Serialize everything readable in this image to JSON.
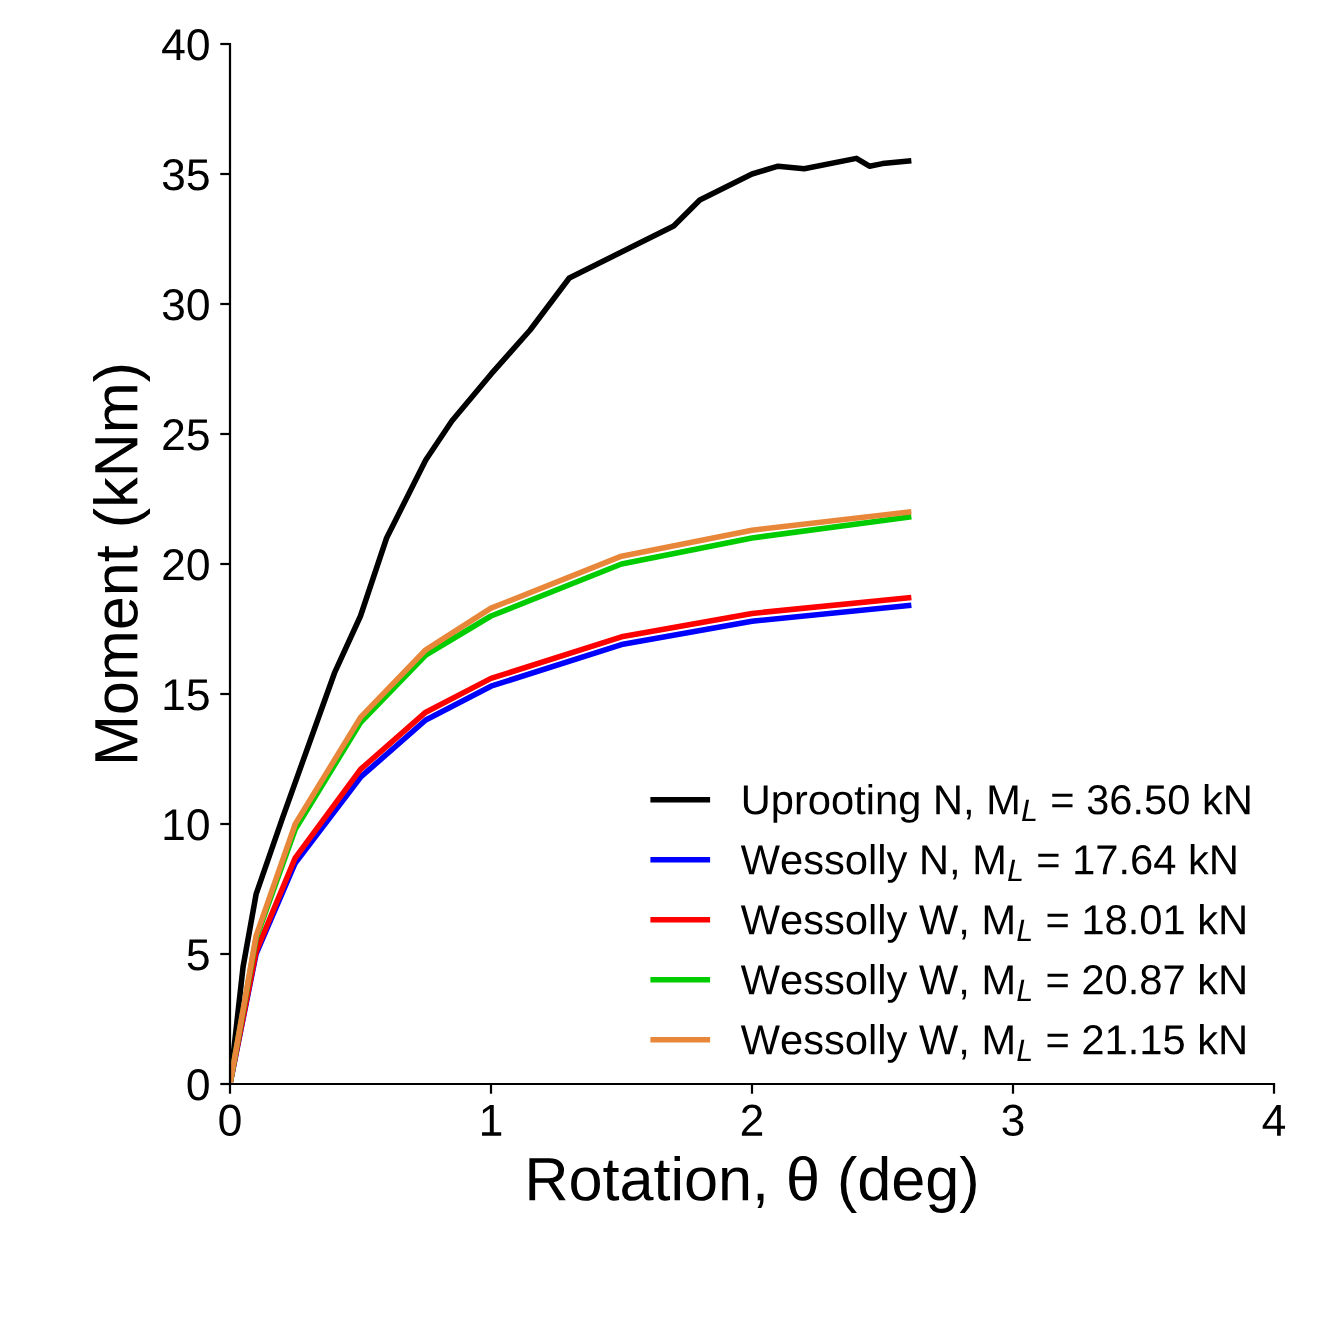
{
  "chart_data": {
    "type": "line",
    "xlabel": "Rotation, θ (deg)",
    "ylabel": "Moment (kNm)",
    "xlim": [
      0,
      4
    ],
    "ylim": [
      0,
      40
    ],
    "xticks": [
      0,
      1,
      2,
      3,
      4
    ],
    "yticks": [
      0,
      5,
      10,
      15,
      20,
      25,
      30,
      35,
      40
    ],
    "grid": false,
    "legend": "bottom right",
    "line_style": "solid",
    "marker": "none",
    "series": [
      {
        "name": "Uprooting N, M$_{L}$ = 36.50 kN",
        "color": "#000000",
        "x": [
          0,
          0.05,
          0.1,
          0.2,
          0.3,
          0.4,
          0.5,
          0.6,
          0.7,
          0.75,
          0.85,
          1.0,
          1.15,
          1.3,
          1.4,
          1.5,
          1.7,
          1.8,
          2.0,
          2.1,
          2.2,
          2.4,
          2.45,
          2.5,
          2.6
        ],
        "values": [
          0,
          4.5,
          7.3,
          10.2,
          13,
          15.8,
          18,
          21,
          23,
          24,
          25.5,
          27.3,
          29,
          31,
          31.5,
          32,
          33,
          34,
          35,
          35.3,
          35.2,
          35.6,
          35.3,
          35.4,
          35.5
        ]
      },
      {
        "name": "Wessolly N, M$_{L}$ = 17.64 kN",
        "color": "#0000ff",
        "x": [
          0,
          0.1,
          0.25,
          0.5,
          0.75,
          1.0,
          1.5,
          2.0,
          2.6
        ],
        "values": [
          0,
          5,
          8.5,
          11.8,
          14,
          15.3,
          16.9,
          17.8,
          18.4
        ]
      },
      {
        "name": "Wessolly W, M$_{L}$ = 18.01 kN",
        "color": "#ff0000",
        "x": [
          0,
          0.1,
          0.25,
          0.5,
          0.75,
          1.0,
          1.5,
          2.0,
          2.6
        ],
        "values": [
          0,
          5.1,
          8.7,
          12.1,
          14.3,
          15.6,
          17.2,
          18.1,
          18.7
        ]
      },
      {
        "name": "Wessolly W, M$_{L}$ = 20.87 kN",
        "color": "#00cc00",
        "x": [
          0,
          0.1,
          0.25,
          0.5,
          0.75,
          1.0,
          1.5,
          2.0,
          2.6
        ],
        "values": [
          0,
          5.6,
          9.8,
          13.9,
          16.5,
          18,
          20,
          21,
          21.8
        ]
      },
      {
        "name": "Wessolly W, M$_{L}$ = 21.15 kN",
        "color": "#e8873a",
        "x": [
          0,
          0.1,
          0.25,
          0.5,
          0.75,
          1.0,
          1.5,
          2.0,
          2.6
        ],
        "values": [
          0,
          5.7,
          10,
          14.1,
          16.7,
          18.3,
          20.3,
          21.3,
          22.0
        ]
      }
    ]
  }
}
